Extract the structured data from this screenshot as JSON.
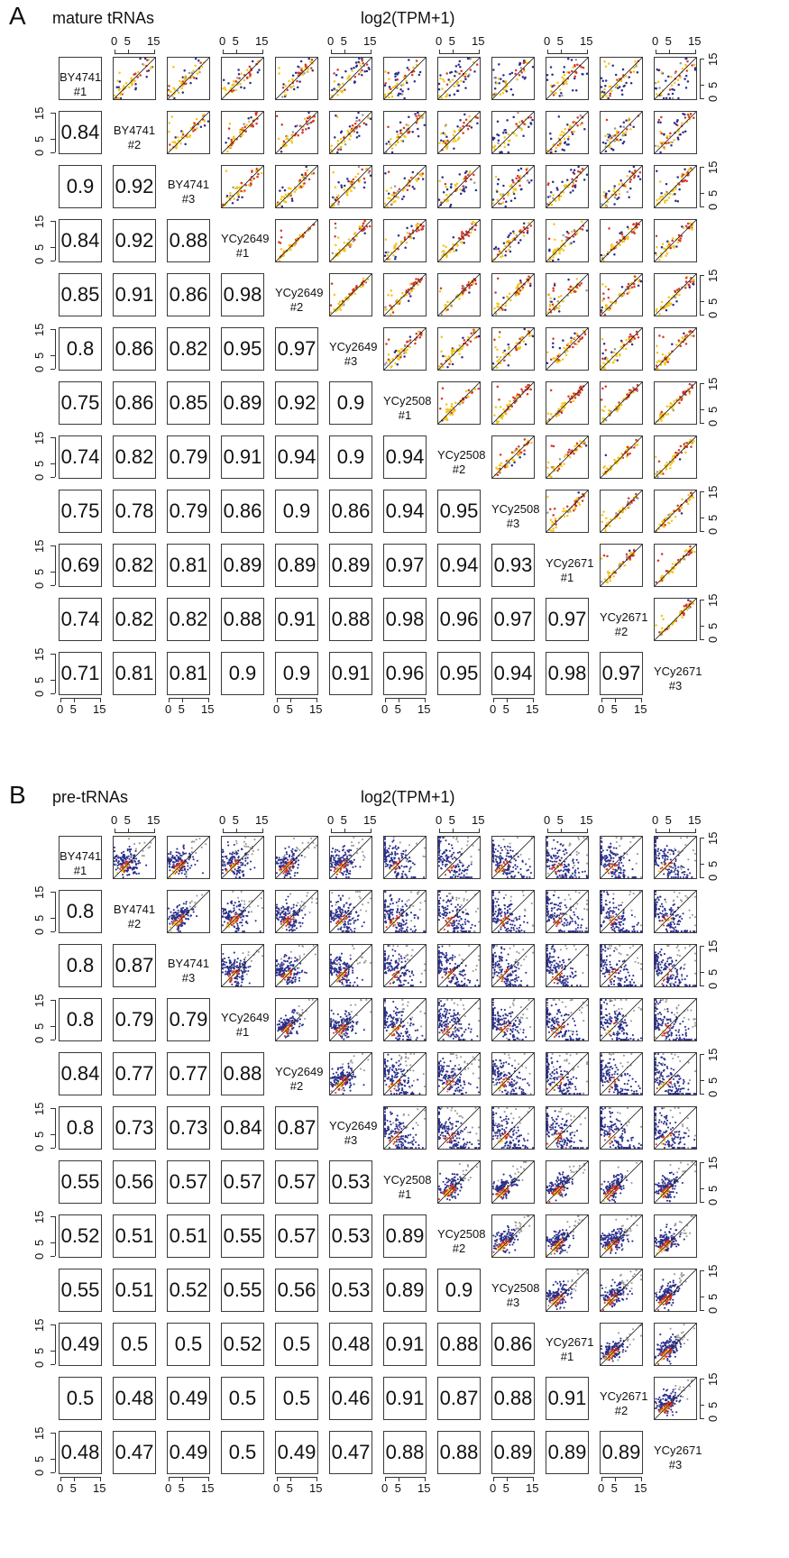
{
  "panels": [
    {
      "letter": "A",
      "title": "mature tRNAs",
      "axis_title": "log2(TPM+1)",
      "samples": [
        {
          "name": "BY4741",
          "rep": "#1"
        },
        {
          "name": "BY4741",
          "rep": "#2"
        },
        {
          "name": "BY4741",
          "rep": "#3"
        },
        {
          "name": "YCy2649",
          "rep": "#1"
        },
        {
          "name": "YCy2649",
          "rep": "#2"
        },
        {
          "name": "YCy2649",
          "rep": "#3"
        },
        {
          "name": "YCy2508",
          "rep": "#1"
        },
        {
          "name": "YCy2508",
          "rep": "#2"
        },
        {
          "name": "YCy2508",
          "rep": "#3"
        },
        {
          "name": "YCy2671",
          "rep": "#1"
        },
        {
          "name": "YCy2671",
          "rep": "#2"
        },
        {
          "name": "YCy2671",
          "rep": "#3"
        }
      ],
      "tick_labels": [
        "0",
        "5",
        "15"
      ],
      "colors": {
        "low": "#2b2f8a",
        "mid": "#d73527",
        "high": "#f5c518",
        "line": "#222222"
      }
    },
    {
      "letter": "B",
      "title": "pre-tRNAs",
      "axis_title": "log2(TPM+1)",
      "samples": [
        {
          "name": "BY4741",
          "rep": "#1"
        },
        {
          "name": "BY4741",
          "rep": "#2"
        },
        {
          "name": "BY4741",
          "rep": "#3"
        },
        {
          "name": "YCy2649",
          "rep": "#1"
        },
        {
          "name": "YCy2649",
          "rep": "#2"
        },
        {
          "name": "YCy2649",
          "rep": "#3"
        },
        {
          "name": "YCy2508",
          "rep": "#1"
        },
        {
          "name": "YCy2508",
          "rep": "#2"
        },
        {
          "name": "YCy2508",
          "rep": "#3"
        },
        {
          "name": "YCy2671",
          "rep": "#1"
        },
        {
          "name": "YCy2671",
          "rep": "#2"
        },
        {
          "name": "YCy2671",
          "rep": "#3"
        }
      ],
      "tick_labels": [
        "0",
        "5",
        "15"
      ],
      "colors": {
        "low": "#2b2f8a",
        "mid": "#d73527",
        "high": "#f5c518",
        "line": "#222222"
      }
    }
  ],
  "chart_data": [
    {
      "type": "heatmap",
      "title": "mature tRNAs",
      "axis_label": "log2(TPM+1)",
      "axis_range": [
        0,
        15
      ],
      "ticks": [
        0,
        5,
        15
      ],
      "samples": [
        "BY4741 #1",
        "BY4741 #2",
        "BY4741 #3",
        "YCy2649 #1",
        "YCy2649 #2",
        "YCy2649 #3",
        "YCy2508 #1",
        "YCy2508 #2",
        "YCy2508 #3",
        "YCy2671 #1",
        "YCy2671 #2",
        "YCy2671 #3"
      ],
      "correlations": [
        [],
        [
          "0.84"
        ],
        [
          "0.9",
          "0.92"
        ],
        [
          "0.84",
          "0.92",
          "0.88"
        ],
        [
          "0.85",
          "0.91",
          "0.86",
          "0.98"
        ],
        [
          "0.8",
          "0.86",
          "0.82",
          "0.95",
          "0.97"
        ],
        [
          "0.75",
          "0.86",
          "0.85",
          "0.89",
          "0.92",
          "0.9"
        ],
        [
          "0.74",
          "0.82",
          "0.79",
          "0.91",
          "0.94",
          "0.9",
          "0.94"
        ],
        [
          "0.75",
          "0.78",
          "0.79",
          "0.86",
          "0.9",
          "0.86",
          "0.94",
          "0.95"
        ],
        [
          "0.69",
          "0.82",
          "0.81",
          "0.89",
          "0.89",
          "0.89",
          "0.97",
          "0.94",
          "0.93"
        ],
        [
          "0.74",
          "0.82",
          "0.82",
          "0.88",
          "0.91",
          "0.88",
          "0.98",
          "0.96",
          "0.97",
          "0.97"
        ],
        [
          "0.71",
          "0.81",
          "0.81",
          "0.9",
          "0.9",
          "0.91",
          "0.96",
          "0.95",
          "0.94",
          "0.98",
          "0.97"
        ]
      ],
      "upper_triangle": "pairwise scatter plots with identity line",
      "scatter_style": "sparse"
    },
    {
      "type": "heatmap",
      "title": "pre-tRNAs",
      "axis_label": "log2(TPM+1)",
      "axis_range": [
        0,
        15
      ],
      "ticks": [
        0,
        5,
        15
      ],
      "samples": [
        "BY4741 #1",
        "BY4741 #2",
        "BY4741 #3",
        "YCy2649 #1",
        "YCy2649 #2",
        "YCy2649 #3",
        "YCy2508 #1",
        "YCy2508 #2",
        "YCy2508 #3",
        "YCy2671 #1",
        "YCy2671 #2",
        "YCy2671 #3"
      ],
      "correlations": [
        [],
        [
          "0.8"
        ],
        [
          "0.8",
          "0.87"
        ],
        [
          "0.8",
          "0.79",
          "0.79"
        ],
        [
          "0.84",
          "0.77",
          "0.77",
          "0.88"
        ],
        [
          "0.8",
          "0.73",
          "0.73",
          "0.84",
          "0.87"
        ],
        [
          "0.55",
          "0.56",
          "0.57",
          "0.57",
          "0.57",
          "0.53"
        ],
        [
          "0.52",
          "0.51",
          "0.51",
          "0.55",
          "0.57",
          "0.53",
          "0.89"
        ],
        [
          "0.55",
          "0.51",
          "0.52",
          "0.55",
          "0.56",
          "0.53",
          "0.89",
          "0.9"
        ],
        [
          "0.49",
          "0.5",
          "0.5",
          "0.52",
          "0.5",
          "0.48",
          "0.91",
          "0.88",
          "0.86"
        ],
        [
          "0.5",
          "0.48",
          "0.49",
          "0.5",
          "0.5",
          "0.46",
          "0.91",
          "0.87",
          "0.88",
          "0.91"
        ],
        [
          "0.48",
          "0.47",
          "0.49",
          "0.5",
          "0.49",
          "0.47",
          "0.88",
          "0.88",
          "0.89",
          "0.89",
          "0.89"
        ]
      ],
      "upper_triangle": "pairwise density scatter plots with identity line",
      "scatter_style": "dense"
    }
  ]
}
